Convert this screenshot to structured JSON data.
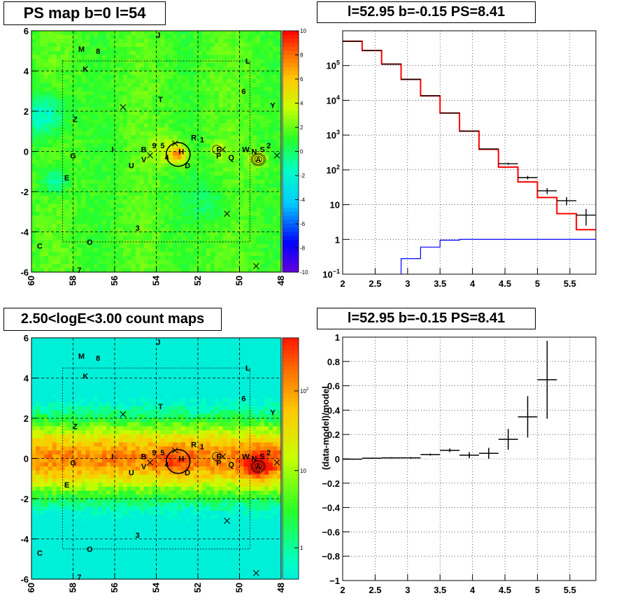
{
  "titles": {
    "ps_map": "PS map b=0 l=54",
    "spectrum": "l=52.95 b=-0.15 PS=8.41",
    "count_map": "2.50<logE<3.00 count maps",
    "residual": "l=52.95 b=-0.15 PS=8.41"
  },
  "chart_data": [
    {
      "id": "ps_map",
      "type": "heatmap",
      "title": "PS map b=0 l=54",
      "xlim": [
        60,
        48
      ],
      "ylim": [
        -6,
        6
      ],
      "x_ticks": [
        "60",
        "58",
        "56",
        "54",
        "52",
        "50",
        "48"
      ],
      "y_ticks": [
        "6",
        "4",
        "2",
        "0",
        "-2",
        "-4",
        "-6"
      ],
      "colorbar": {
        "min": -10,
        "max": 10,
        "ticks": [
          "10",
          "8",
          "6",
          "4",
          "2",
          "0",
          "-2",
          "-4",
          "-6",
          "-8",
          "-10"
        ]
      },
      "grid": true,
      "source_labels": [
        {
          "t": "J",
          "x": 53.9,
          "y": 5.8
        },
        {
          "t": "M",
          "x": 57.6,
          "y": 5.1
        },
        {
          "t": "8",
          "x": 56.8,
          "y": 5.0
        },
        {
          "t": "K",
          "x": 57.4,
          "y": 4.1
        },
        {
          "t": "L",
          "x": 49.6,
          "y": 4.5
        },
        {
          "t": "6",
          "x": 49.8,
          "y": 3.0
        },
        {
          "t": "T",
          "x": 53.8,
          "y": 2.6
        },
        {
          "t": "Y",
          "x": 48.4,
          "y": 2.3
        },
        {
          "t": "Z",
          "x": 57.9,
          "y": 1.6
        },
        {
          "t": "R",
          "x": 52.2,
          "y": 0.7
        },
        {
          "t": "1",
          "x": 51.8,
          "y": 0.6
        },
        {
          "t": "9",
          "x": 54.1,
          "y": 0.3
        },
        {
          "t": "5",
          "x": 53.7,
          "y": 0.3
        },
        {
          "t": "B",
          "x": 54.6,
          "y": 0.1
        },
        {
          "t": "I",
          "x": 56.1,
          "y": 0.1
        },
        {
          "t": "H",
          "x": 52.8,
          "y": 0.0
        },
        {
          "t": "F",
          "x": 51.0,
          "y": 0.1
        },
        {
          "t": "W",
          "x": 49.7,
          "y": 0.1
        },
        {
          "t": "N",
          "x": 49.3,
          "y": 0.0
        },
        {
          "t": "S",
          "x": 48.9,
          "y": 0.1
        },
        {
          "t": "2",
          "x": 48.6,
          "y": 0.3
        },
        {
          "t": "G",
          "x": 58.0,
          "y": -0.2
        },
        {
          "t": "4",
          "x": 53.5,
          "y": -0.3
        },
        {
          "t": "V",
          "x": 54.6,
          "y": -0.4
        },
        {
          "t": "P",
          "x": 51.0,
          "y": -0.2
        },
        {
          "t": "Q",
          "x": 50.4,
          "y": -0.3
        },
        {
          "t": "A",
          "x": 49.1,
          "y": -0.4
        },
        {
          "t": "U",
          "x": 55.2,
          "y": -0.7
        },
        {
          "t": "D",
          "x": 52.5,
          "y": -0.7
        },
        {
          "t": "E",
          "x": 58.3,
          "y": -1.3
        },
        {
          "t": "3",
          "x": 54.9,
          "y": -3.8
        },
        {
          "t": "O",
          "x": 57.2,
          "y": -4.5
        },
        {
          "t": "C",
          "x": 59.6,
          "y": -4.7
        },
        {
          "t": "7",
          "x": 57.7,
          "y": -5.9
        }
      ],
      "cross_markers": [
        [
          55.6,
          2.2
        ],
        [
          54.3,
          -0.2
        ],
        [
          53.1,
          0.4
        ],
        [
          50.8,
          0.1
        ],
        [
          48.2,
          -0.2
        ],
        [
          50.6,
          -3.1
        ],
        [
          49.2,
          -5.7
        ]
      ]
    },
    {
      "id": "spectrum",
      "type": "line",
      "title": "l=52.95 b=-0.15 PS=8.41",
      "xlim": [
        2,
        5.9
      ],
      "ylim_log": [
        0.1,
        1000000
      ],
      "y_scale": "log",
      "x_ticks": [
        "2",
        "2.5",
        "3",
        "3.5",
        "4",
        "4.5",
        "5",
        "5.5"
      ],
      "y_ticks": [
        {
          "label": "10",
          "sup": "5",
          "v": 100000
        },
        {
          "label": "10",
          "sup": "4",
          "v": 10000
        },
        {
          "label": "10",
          "sup": "3",
          "v": 1000
        },
        {
          "label": "10",
          "sup": "2",
          "v": 100
        },
        {
          "label": "10",
          "sup": "",
          "v": 10
        },
        {
          "label": "1",
          "sup": "",
          "v": 1
        },
        {
          "label": "10",
          "sup": "−1",
          "v": 0.1
        }
      ],
      "grid": true,
      "bin_edges": [
        2.0,
        2.3,
        2.6,
        2.9,
        3.2,
        3.5,
        3.8,
        4.1,
        4.4,
        4.7,
        5.0,
        5.3,
        5.6,
        5.9
      ],
      "series": [
        {
          "name": "",
          "color": "#ff0000",
          "values": [
            500000,
            270000,
            110000,
            40000,
            13500,
            4300,
            1300,
            390,
            120,
            45,
            16,
            5.5,
            1.9
          ]
        },
        {
          "name": "",
          "color": "#0000ff",
          "values": [
            0.001,
            0.001,
            0.001,
            0.28,
            0.6,
            0.95,
            1.0,
            1.0,
            1.0,
            1.0,
            1.0,
            1.0,
            1.0
          ]
        }
      ],
      "data_points": [
        {
          "x": 2.15,
          "y": 500000,
          "err": [
            0,
            0
          ]
        },
        {
          "x": 2.45,
          "y": 270000,
          "err": [
            0,
            0
          ]
        },
        {
          "x": 2.75,
          "y": 110000,
          "err": [
            0,
            0
          ]
        },
        {
          "x": 3.05,
          "y": 40000,
          "err": [
            0,
            0
          ]
        },
        {
          "x": 3.35,
          "y": 13500,
          "err": [
            0,
            0
          ]
        },
        {
          "x": 3.65,
          "y": 4300,
          "err": [
            0,
            0
          ]
        },
        {
          "x": 3.95,
          "y": 1300,
          "err": [
            0,
            0
          ]
        },
        {
          "x": 4.25,
          "y": 400,
          "err": [
            0,
            0
          ]
        },
        {
          "x": 4.55,
          "y": 150,
          "err": [
            10,
            10
          ]
        },
        {
          "x": 4.85,
          "y": 60,
          "err": [
            7,
            7
          ]
        },
        {
          "x": 5.15,
          "y": 25,
          "err": [
            5,
            5
          ]
        },
        {
          "x": 5.45,
          "y": 13,
          "err": [
            3.5,
            3.5
          ]
        },
        {
          "x": 5.75,
          "y": 5,
          "err": [
            2.5,
            2.5
          ]
        }
      ]
    },
    {
      "id": "count_map",
      "type": "heatmap",
      "title": "2.50<logE<3.00 count maps",
      "xlim": [
        60,
        48
      ],
      "ylim": [
        -6,
        6
      ],
      "x_ticks": [
        "60",
        "58",
        "56",
        "54",
        "52",
        "50",
        "48"
      ],
      "y_ticks": [
        "6",
        "4",
        "2",
        "0",
        "-2",
        "-4",
        "-6"
      ],
      "colorbar": {
        "scale": "log",
        "ticks": [
          {
            "label": "10",
            "sup": "2"
          },
          {
            "label": "10",
            "sup": ""
          },
          {
            "label": "1",
            "sup": ""
          }
        ]
      },
      "grid": true
    },
    {
      "id": "residual",
      "type": "scatter",
      "title": "l=52.95 b=-0.15 PS=8.41",
      "xlim": [
        2,
        5.9
      ],
      "ylim": [
        -1,
        1
      ],
      "ylabel": "(data-model)/model",
      "x_ticks": [
        "2",
        "2.5",
        "3",
        "3.5",
        "4",
        "4.5",
        "5",
        "5.5"
      ],
      "y_ticks": [
        "1",
        "0.8",
        "0.6",
        "0.4",
        "0.2",
        "0",
        "−0.2",
        "−0.4",
        "−0.6",
        "−0.8",
        "−1"
      ],
      "grid": true,
      "points": [
        {
          "x": 2.15,
          "y": -0.003,
          "xerr": 0.15,
          "yerr": 0.004
        },
        {
          "x": 2.45,
          "y": 0.005,
          "xerr": 0.15,
          "yerr": 0.004
        },
        {
          "x": 2.75,
          "y": 0.008,
          "xerr": 0.15,
          "yerr": 0.005
        },
        {
          "x": 3.05,
          "y": 0.008,
          "xerr": 0.15,
          "yerr": 0.006
        },
        {
          "x": 3.35,
          "y": 0.035,
          "xerr": 0.15,
          "yerr": 0.008
        },
        {
          "x": 3.65,
          "y": 0.07,
          "xerr": 0.15,
          "yerr": 0.015
        },
        {
          "x": 3.95,
          "y": 0.03,
          "xerr": 0.15,
          "yerr": 0.025
        },
        {
          "x": 4.25,
          "y": 0.045,
          "xerr": 0.15,
          "yerr": 0.045
        },
        {
          "x": 4.55,
          "y": 0.16,
          "xerr": 0.15,
          "yerr": 0.085
        },
        {
          "x": 4.85,
          "y": 0.345,
          "xerr": 0.15,
          "yerr": 0.17
        },
        {
          "x": 5.15,
          "y": 0.65,
          "xerr": 0.15,
          "yerr": 0.32
        }
      ]
    }
  ]
}
